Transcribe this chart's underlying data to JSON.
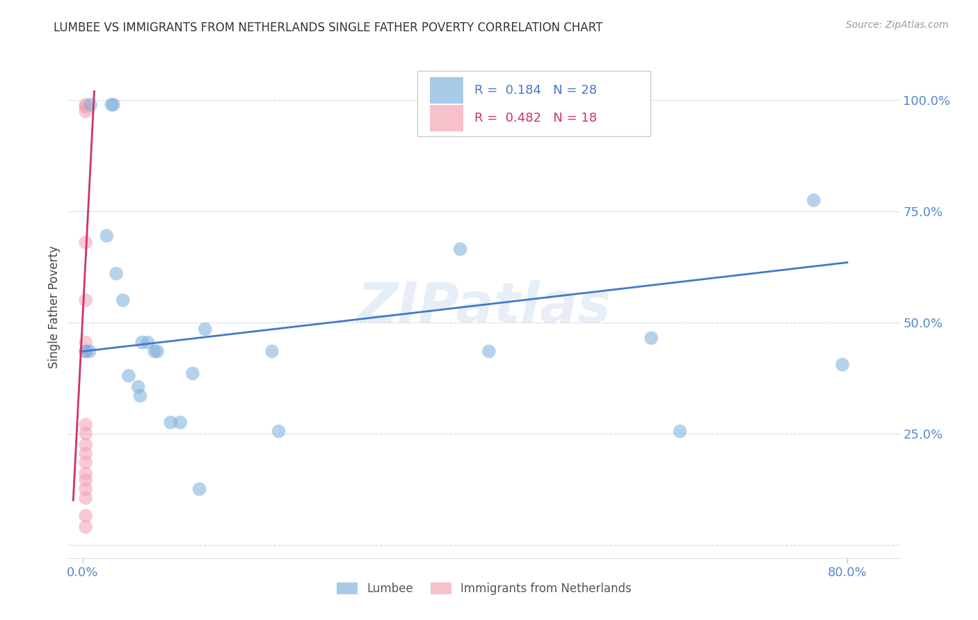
{
  "title": "LUMBEE VS IMMIGRANTS FROM NETHERLANDS SINGLE FATHER POVERTY CORRELATION CHART",
  "source": "Source: ZipAtlas.com",
  "ylabel": "Single Father Poverty",
  "background_color": "#ffffff",
  "grid_color": "#cccccc",
  "watermark": "ZIPatlas",
  "lumbee_color": "#7aaedc",
  "netherlands_color": "#f4a0b0",
  "lumbee_line_color": "#4477cc",
  "netherlands_line_color": "#cc3366",
  "lumbee_points_x": [
    0.003,
    0.007,
    0.008,
    0.03,
    0.032,
    0.025,
    0.035,
    0.042,
    0.048,
    0.058,
    0.06,
    0.062,
    0.068,
    0.075,
    0.078,
    0.092,
    0.102,
    0.115,
    0.122,
    0.128,
    0.198,
    0.205,
    0.395,
    0.425,
    0.595,
    0.625,
    0.765,
    0.795
  ],
  "lumbee_points_y": [
    0.435,
    0.435,
    0.99,
    0.99,
    0.99,
    0.695,
    0.61,
    0.55,
    0.38,
    0.355,
    0.335,
    0.455,
    0.455,
    0.435,
    0.435,
    0.275,
    0.275,
    0.385,
    0.125,
    0.485,
    0.435,
    0.255,
    0.665,
    0.435,
    0.465,
    0.255,
    0.775,
    0.405
  ],
  "netherlands_points_x": [
    0.003,
    0.003,
    0.003,
    0.003,
    0.003,
    0.003,
    0.003,
    0.003,
    0.003,
    0.003,
    0.003,
    0.003,
    0.003,
    0.003,
    0.003,
    0.003,
    0.003,
    0.003
  ],
  "netherlands_points_y": [
    0.99,
    0.985,
    0.975,
    0.55,
    0.455,
    0.435,
    0.27,
    0.25,
    0.225,
    0.205,
    0.185,
    0.16,
    0.145,
    0.125,
    0.105,
    0.065,
    0.04,
    0.68
  ],
  "lumbee_trend_x": [
    0.0,
    0.8
  ],
  "lumbee_trend_y": [
    0.435,
    0.635
  ],
  "netherlands_trend_x": [
    -0.01,
    0.012
  ],
  "netherlands_trend_y": [
    0.1,
    1.02
  ],
  "xlim": [
    -0.015,
    0.855
  ],
  "ylim": [
    -0.03,
    1.1
  ],
  "ytick_positions": [
    0.0,
    0.25,
    0.5,
    0.75,
    1.0
  ],
  "ytick_labels": [
    "",
    "25.0%",
    "50.0%",
    "75.0%",
    "100.0%"
  ],
  "xtick_positions": [
    0.0,
    0.8
  ],
  "xtick_labels": [
    "0.0%",
    "80.0%"
  ]
}
